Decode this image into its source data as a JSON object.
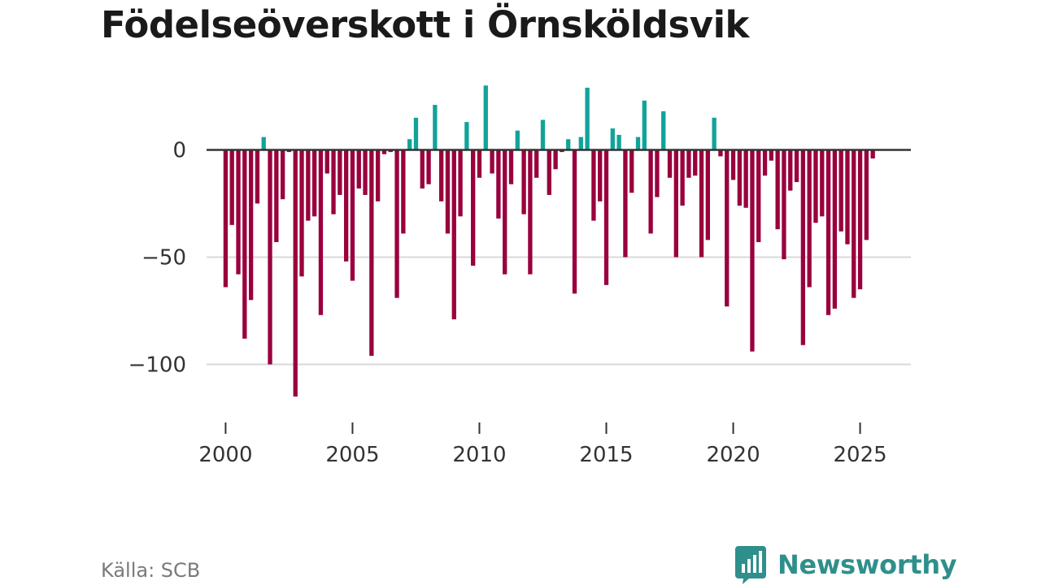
{
  "title": "Födelseöverskott i Örnsköldsvik",
  "source": "Källa: SCB",
  "brand": {
    "name": "Newsworthy",
    "icon": "bar-chart-speech-bubble-icon"
  },
  "colors": {
    "positive": "#11a39a",
    "negative": "#99003d",
    "zero_line": "#333333",
    "grid": "#d9d9d9",
    "brand": "#2f8f8b"
  },
  "chart_data": {
    "type": "bar",
    "title": "Födelseöverskott i Örnsköldsvik",
    "xlabel": "",
    "ylabel": "",
    "frequency": "monthly",
    "x_start": 2000.0,
    "x_step": 0.25,
    "x_ticks": [
      2000,
      2005,
      2010,
      2015,
      2020,
      2025
    ],
    "y_ticks": [
      0,
      -50,
      -100
    ],
    "y_tick_labels": [
      "0",
      "−50",
      "−100"
    ],
    "ylim": [
      -118,
      32
    ],
    "xlim": [
      1999.25,
      2027.0
    ],
    "grid": true,
    "values": [
      -64,
      -35,
      -58,
      -88,
      -70,
      -25,
      6,
      -100,
      -43,
      -23,
      -1,
      -115,
      -59,
      -33,
      -31,
      -77,
      -11,
      -30,
      -21,
      -52,
      -61,
      -18,
      -21,
      -96,
      -24,
      -2,
      -1,
      -69,
      -39,
      5,
      15,
      -18,
      -16,
      21,
      -24,
      -39,
      -79,
      -31,
      13,
      -54,
      -13,
      30,
      -11,
      -32,
      -58,
      -16,
      9,
      -30,
      -58,
      -13,
      14,
      -21,
      -9,
      -1,
      5,
      -67,
      6,
      29,
      -33,
      -24,
      -63,
      10,
      7,
      -50,
      -20,
      6,
      23,
      -39,
      -22,
      18,
      -13,
      -50,
      -26,
      -13,
      -12,
      -50,
      -42,
      15,
      -3,
      -73,
      -14,
      -26,
      -27,
      -94,
      -43,
      -12,
      -5,
      -37,
      -51,
      -19,
      -15,
      -91,
      -64,
      -34,
      -31,
      -77,
      -74,
      -38,
      -44,
      -69,
      -65,
      -42,
      -4
    ]
  }
}
